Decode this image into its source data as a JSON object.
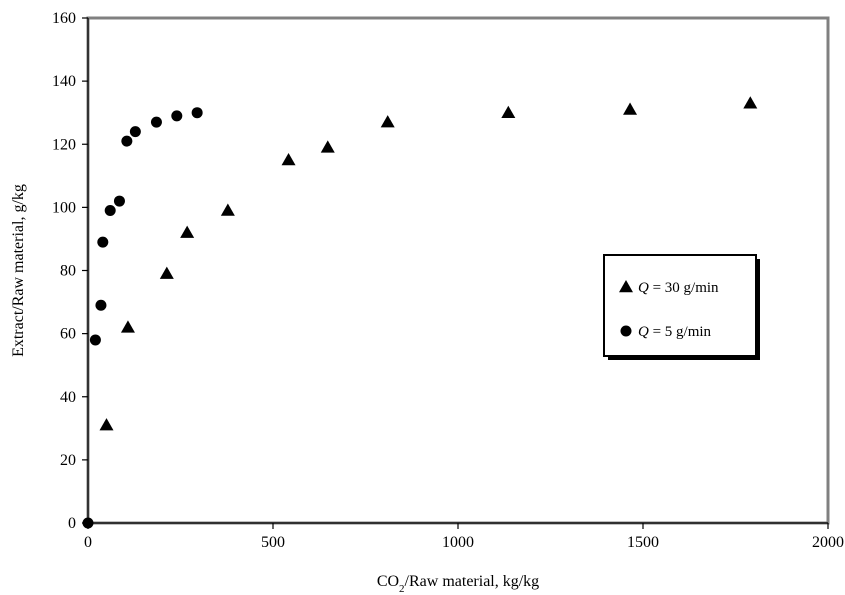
{
  "chart_data": {
    "type": "scatter",
    "title": "",
    "xlabel": {
      "prefix": "CO",
      "subscript": "2",
      "suffix": "/Raw material, kg/kg"
    },
    "ylabel": "Extract/Raw material, g/kg",
    "xlim": [
      0,
      2000
    ],
    "ylim": [
      0,
      160
    ],
    "x_ticks": [
      0,
      500,
      1000,
      1500,
      2000
    ],
    "y_ticks": [
      0,
      20,
      40,
      60,
      80,
      100,
      120,
      140,
      160
    ],
    "grid": false,
    "legend_position": "right",
    "series": [
      {
        "name": {
          "var": "Q",
          "rest": " = 30 g/min"
        },
        "marker": "triangle",
        "color": "#000000",
        "points": [
          {
            "x": 50,
            "y": 31
          },
          {
            "x": 108,
            "y": 62
          },
          {
            "x": 213,
            "y": 79
          },
          {
            "x": 268,
            "y": 92
          },
          {
            "x": 378,
            "y": 99
          },
          {
            "x": 542,
            "y": 115
          },
          {
            "x": 648,
            "y": 119
          },
          {
            "x": 810,
            "y": 127
          },
          {
            "x": 1136,
            "y": 130
          },
          {
            "x": 1465,
            "y": 131
          },
          {
            "x": 1790,
            "y": 133
          }
        ]
      },
      {
        "name": {
          "var": "Q",
          "rest": " = 5 g/min"
        },
        "marker": "circle",
        "color": "#000000",
        "points": [
          {
            "x": 0,
            "y": 0
          },
          {
            "x": 20,
            "y": 58
          },
          {
            "x": 35,
            "y": 69
          },
          {
            "x": 40,
            "y": 89
          },
          {
            "x": 60,
            "y": 99
          },
          {
            "x": 85,
            "y": 102
          },
          {
            "x": 105,
            "y": 121
          },
          {
            "x": 128,
            "y": 124
          },
          {
            "x": 185,
            "y": 127
          },
          {
            "x": 240,
            "y": 129
          },
          {
            "x": 295,
            "y": 130
          }
        ]
      }
    ]
  }
}
